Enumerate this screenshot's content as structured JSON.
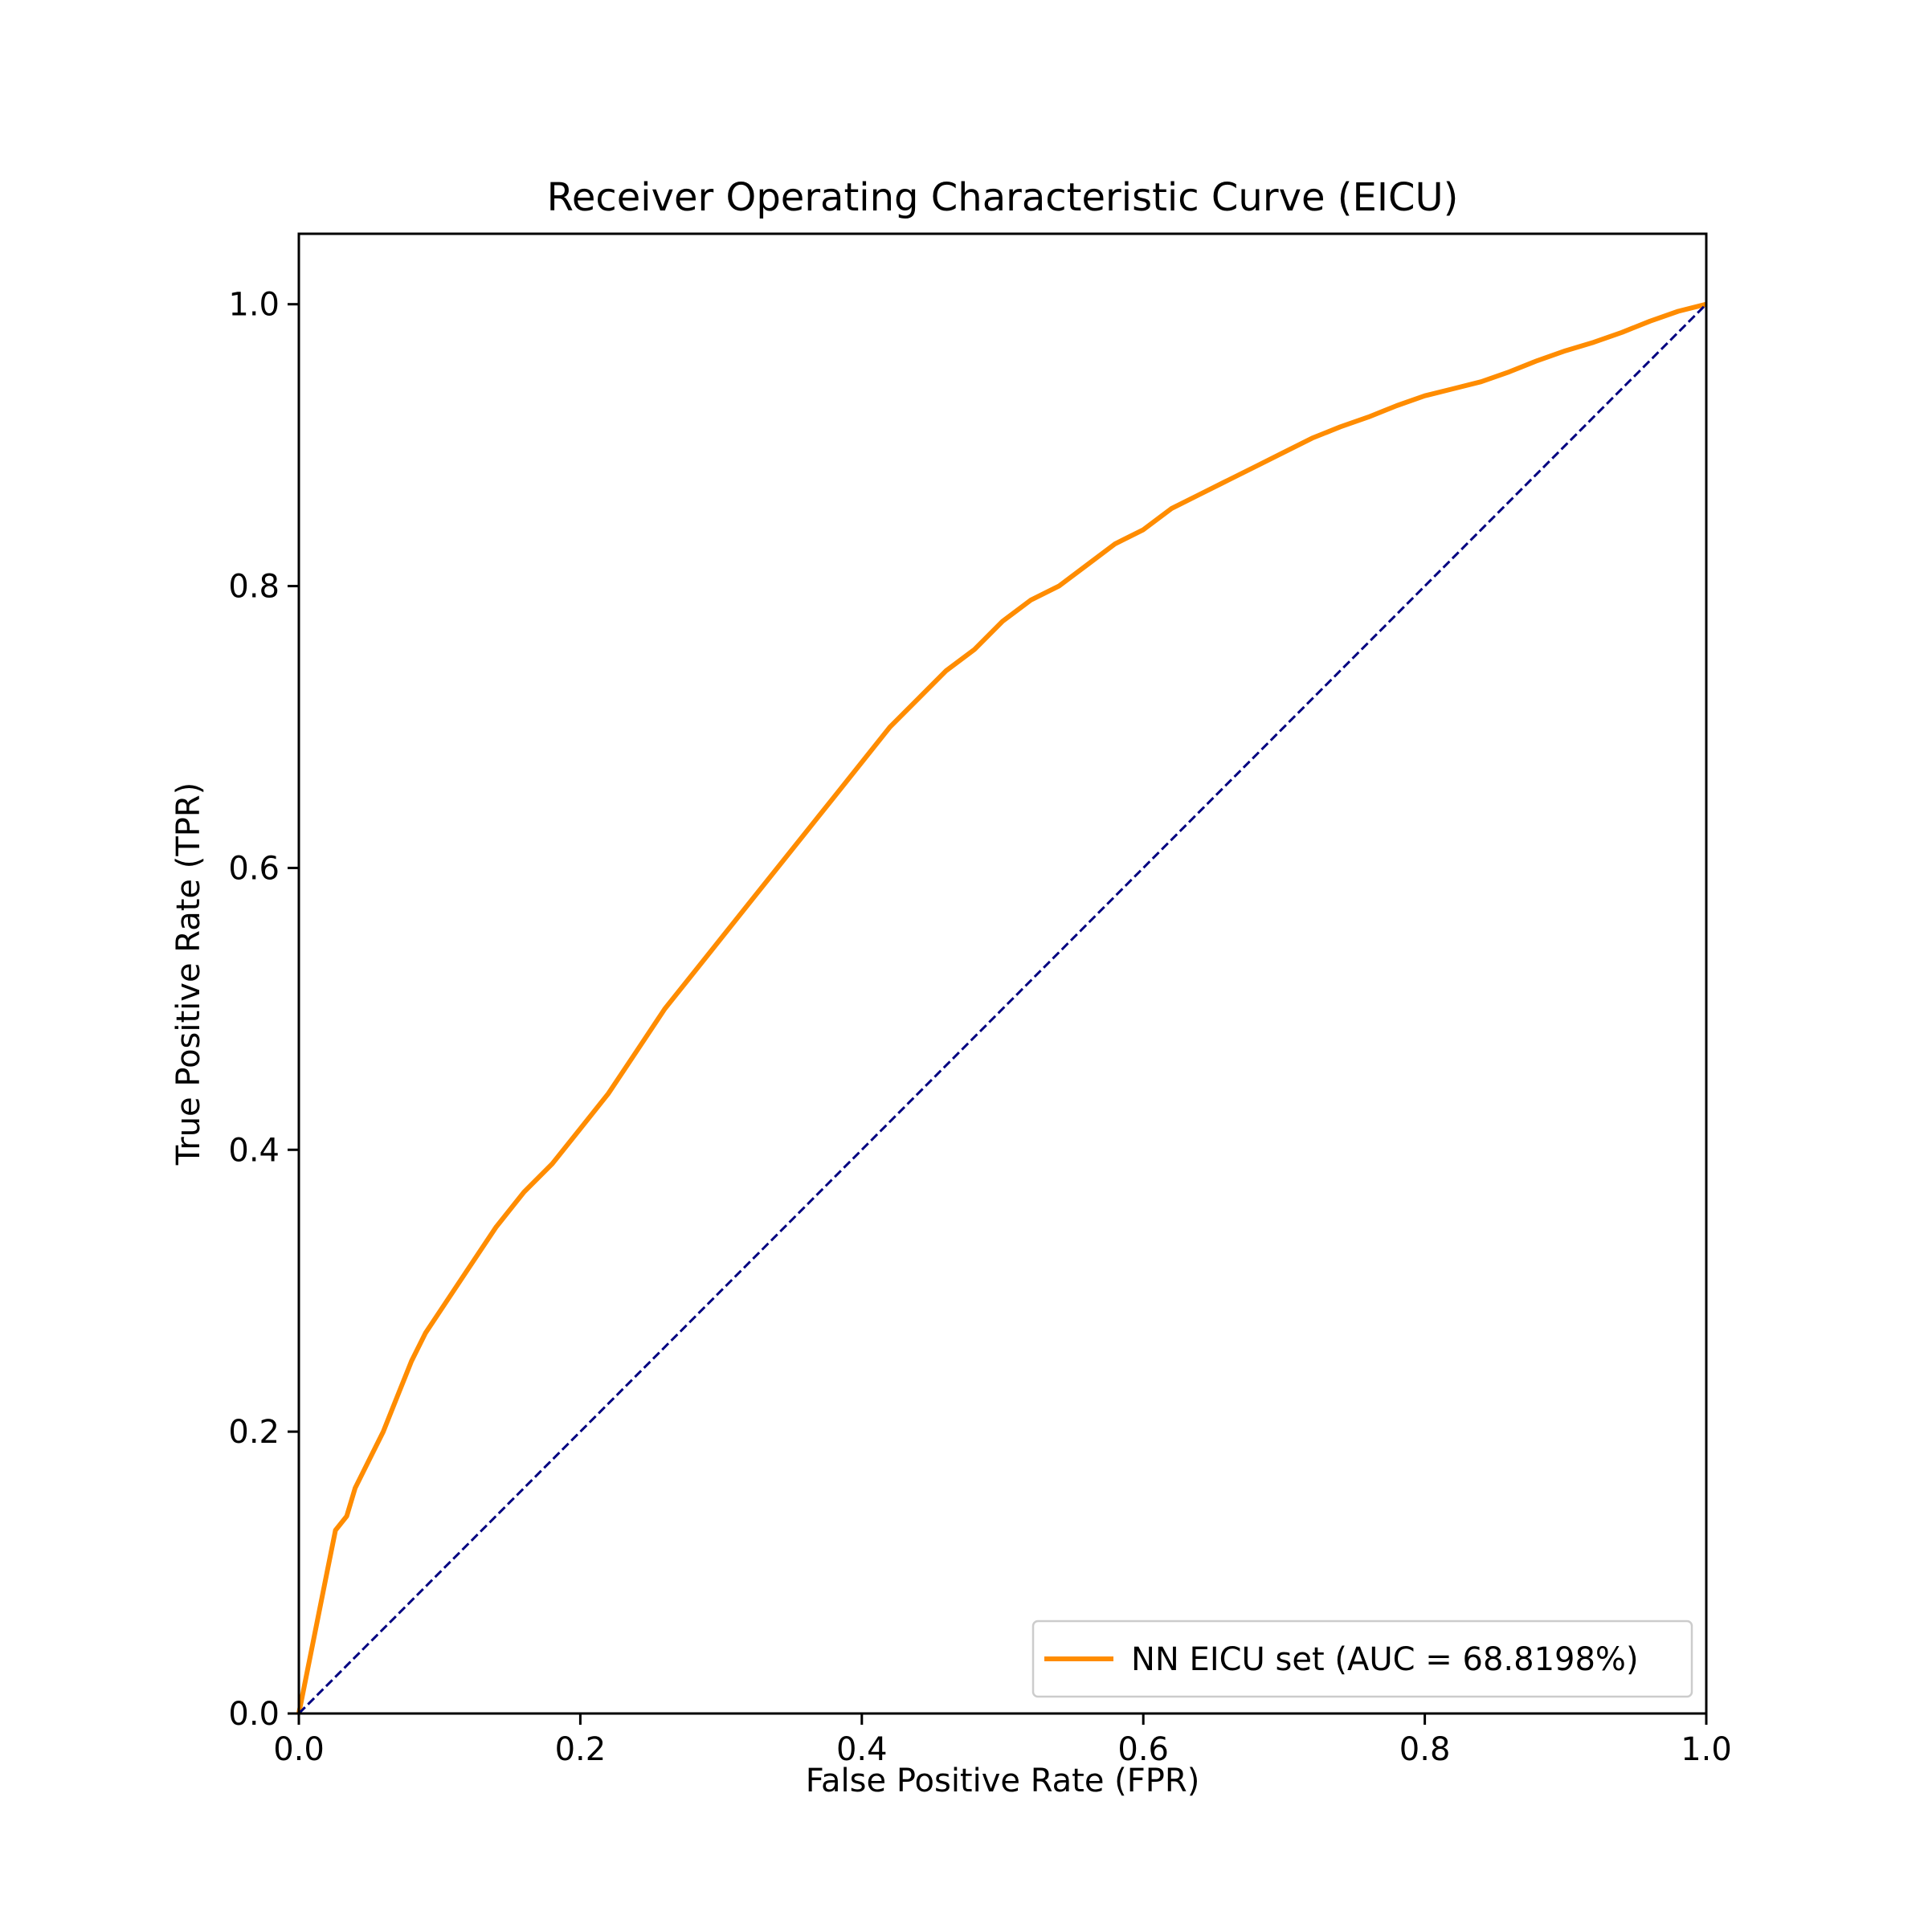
{
  "chart_data": {
    "type": "line",
    "title": "Receiver Operating Characteristic Curve (EICU)",
    "xlabel": "False Positive Rate (FPR)",
    "ylabel": "True Positive Rate (TPR)",
    "xlim": [
      0.0,
      1.0
    ],
    "ylim": [
      0.0,
      1.05
    ],
    "xticks": [
      0.0,
      0.2,
      0.4,
      0.6,
      0.8,
      1.0
    ],
    "yticks": [
      0.0,
      0.2,
      0.4,
      0.6,
      0.8,
      1.0
    ],
    "xtick_labels": [
      "0.0",
      "0.2",
      "0.4",
      "0.6",
      "0.8",
      "1.0"
    ],
    "ytick_labels": [
      "0.0",
      "0.2",
      "0.4",
      "0.6",
      "0.8",
      "1.0"
    ],
    "grid": false,
    "legend_position": "lower-right",
    "series": [
      {
        "name": "NN EICU set (AUC = 68.8198%)",
        "color": "#ff8c00",
        "style": "solid",
        "x": [
          0.0,
          0.01,
          0.02,
          0.026,
          0.034,
          0.04,
          0.05,
          0.06,
          0.07,
          0.08,
          0.09,
          0.1,
          0.12,
          0.14,
          0.16,
          0.18,
          0.2,
          0.22,
          0.24,
          0.26,
          0.28,
          0.3,
          0.32,
          0.34,
          0.36,
          0.38,
          0.4,
          0.42,
          0.44,
          0.46,
          0.48,
          0.5,
          0.52,
          0.54,
          0.56,
          0.58,
          0.6,
          0.62,
          0.64,
          0.66,
          0.68,
          0.7,
          0.72,
          0.74,
          0.76,
          0.78,
          0.8,
          0.82,
          0.84,
          0.86,
          0.88,
          0.9,
          0.92,
          0.94,
          0.96,
          0.98,
          1.0
        ],
        "y": [
          0.0,
          0.05,
          0.1,
          0.13,
          0.14,
          0.16,
          0.18,
          0.2,
          0.225,
          0.25,
          0.27,
          0.285,
          0.315,
          0.345,
          0.37,
          0.39,
          0.415,
          0.44,
          0.47,
          0.5,
          0.525,
          0.55,
          0.575,
          0.6,
          0.625,
          0.65,
          0.675,
          0.7,
          0.72,
          0.74,
          0.755,
          0.775,
          0.79,
          0.8,
          0.815,
          0.83,
          0.84,
          0.855,
          0.865,
          0.875,
          0.885,
          0.895,
          0.905,
          0.913,
          0.92,
          0.928,
          0.935,
          0.94,
          0.945,
          0.952,
          0.96,
          0.967,
          0.973,
          0.98,
          0.988,
          0.995,
          1.0
        ]
      },
      {
        "name": "",
        "color": "#000080",
        "style": "dashed",
        "x": [
          0.0,
          1.0
        ],
        "y": [
          0.0,
          1.0
        ]
      }
    ]
  }
}
